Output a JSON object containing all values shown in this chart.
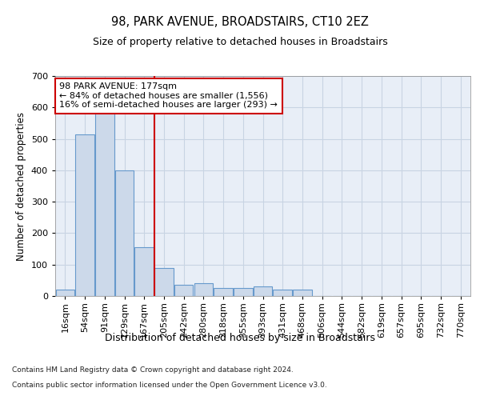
{
  "title1": "98, PARK AVENUE, BROADSTAIRS, CT10 2EZ",
  "title2": "Size of property relative to detached houses in Broadstairs",
  "xlabel": "Distribution of detached houses by size in Broadstairs",
  "ylabel": "Number of detached properties",
  "bar_labels": [
    "16sqm",
    "54sqm",
    "91sqm",
    "129sqm",
    "167sqm",
    "205sqm",
    "242sqm",
    "280sqm",
    "318sqm",
    "355sqm",
    "393sqm",
    "431sqm",
    "468sqm",
    "506sqm",
    "544sqm",
    "582sqm",
    "619sqm",
    "657sqm",
    "695sqm",
    "732sqm",
    "770sqm"
  ],
  "bar_heights": [
    20,
    515,
    590,
    400,
    155,
    90,
    35,
    40,
    25,
    25,
    30,
    20,
    20,
    0,
    0,
    0,
    0,
    0,
    0,
    0,
    0
  ],
  "bar_color": "#ccd9ea",
  "bar_edgecolor": "#6699cc",
  "ylim": [
    0,
    700
  ],
  "yticks": [
    0,
    100,
    200,
    300,
    400,
    500,
    600,
    700
  ],
  "vline_color": "#cc0000",
  "annotation_text": "98 PARK AVENUE: 177sqm\n← 84% of detached houses are smaller (1,556)\n16% of semi-detached houses are larger (293) →",
  "annotation_box_color": "#ffffff",
  "annotation_border_color": "#cc0000",
  "footer1": "Contains HM Land Registry data © Crown copyright and database right 2024.",
  "footer2": "Contains public sector information licensed under the Open Government Licence v3.0.",
  "grid_color": "#c8d4e3",
  "background_color": "#e8eef7"
}
